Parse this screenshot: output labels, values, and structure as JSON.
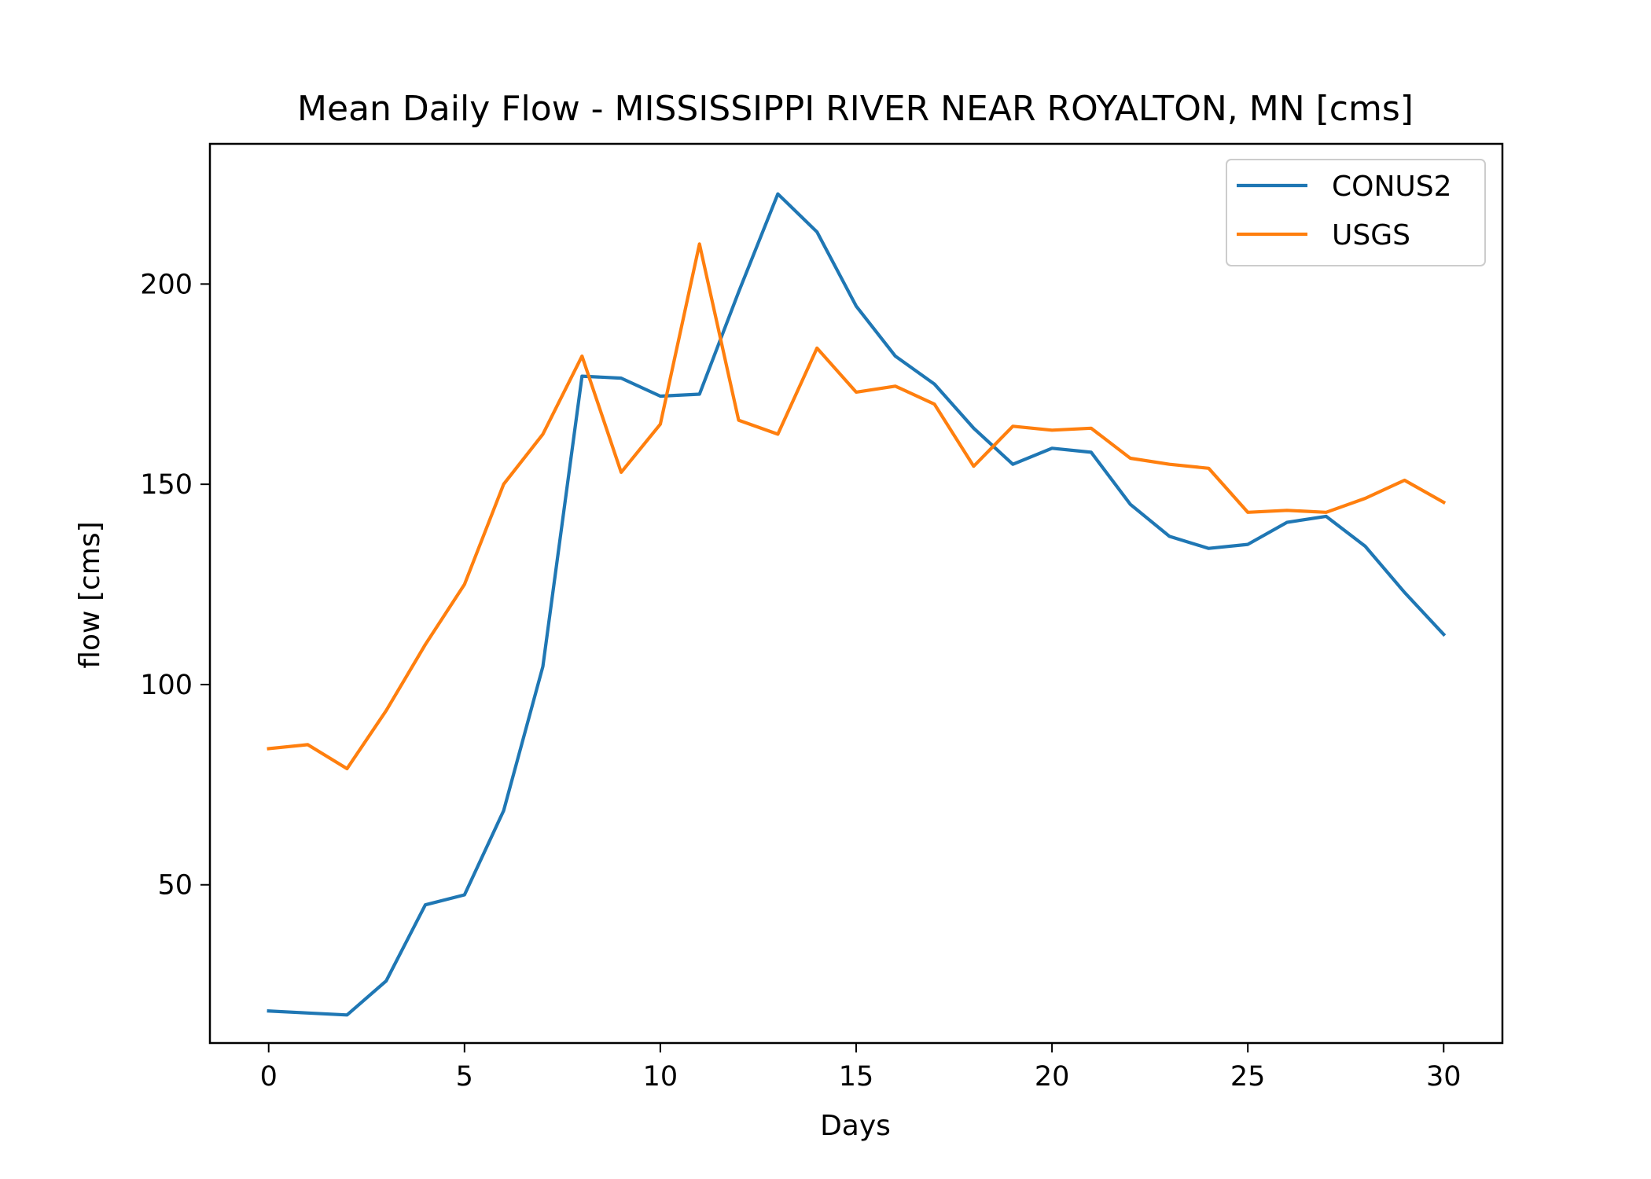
{
  "chart_data": {
    "type": "line",
    "title": "Mean Daily Flow - MISSISSIPPI RIVER NEAR ROYALTON, MN [cms]",
    "xlabel": "Days",
    "ylabel": "flow [cms]",
    "xlim": [
      -1.5,
      31.5
    ],
    "ylim": [
      10.5,
      235
    ],
    "xticks": [
      0,
      5,
      10,
      15,
      20,
      25,
      30
    ],
    "yticks": [
      50,
      100,
      150,
      200
    ],
    "grid": false,
    "legend": "top-right",
    "x": [
      0,
      1,
      2,
      3,
      4,
      5,
      6,
      7,
      8,
      9,
      10,
      11,
      12,
      13,
      14,
      15,
      16,
      17,
      18,
      19,
      20,
      21,
      22,
      23,
      24,
      25,
      26,
      27,
      28,
      29,
      30
    ],
    "series": [
      {
        "name": "CONUS2",
        "color": "#1f77b4",
        "values": [
          18.5,
          18,
          17.5,
          26,
          45,
          47.5,
          68.5,
          104.5,
          177,
          176.5,
          172,
          172.5,
          198,
          222.5,
          213,
          194.5,
          182,
          175,
          164,
          155,
          159,
          158,
          145,
          137,
          134,
          135,
          140.5,
          142,
          134.5,
          123,
          112.5
        ]
      },
      {
        "name": "USGS",
        "color": "#ff7f0e",
        "values": [
          84,
          85,
          79,
          93.5,
          110,
          125,
          150,
          162.5,
          182,
          153,
          165,
          210,
          166,
          162.5,
          184,
          173,
          174.5,
          170,
          154.5,
          164.5,
          163.5,
          164,
          156.5,
          155,
          154,
          143,
          143.5,
          143,
          146.5,
          151,
          145.5
        ]
      }
    ]
  }
}
